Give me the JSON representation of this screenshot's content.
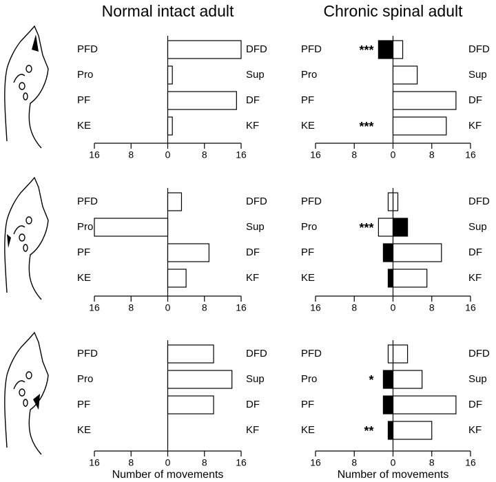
{
  "chart_data": [
    {
      "type": "bar",
      "title": "Normal intact adult",
      "categories": [
        "PFD",
        "Pro",
        "PF",
        "KE"
      ],
      "right_categories": [
        "DFD",
        "Sup",
        "DF",
        "KF"
      ],
      "series": [
        {
          "color": "#ffffff",
          "values": [
            16,
            1,
            15,
            1
          ]
        }
      ],
      "xlim": [
        -16,
        16
      ],
      "xticks": [
        {
          "value": -16,
          "label": "16"
        },
        {
          "value": -8,
          "label": "8"
        },
        0,
        8,
        16
      ]
    },
    {
      "type": "bar",
      "title": "Chronic spinal adult",
      "categories": [
        "PFD",
        "Pro",
        "PF",
        "KE"
      ],
      "right_categories": [
        "DFD",
        "Sup",
        "DF",
        "KF"
      ],
      "annotations": [
        "***",
        null,
        null,
        "***"
      ],
      "series": [
        {
          "color": "#ffffff",
          "values": [
            2,
            5,
            13,
            11
          ]
        },
        {
          "color": "#000000",
          "values": [
            -3,
            null,
            null,
            null
          ]
        }
      ],
      "xlim": [
        -16,
        16
      ],
      "xticks": [
        {
          "value": -16,
          "label": "16"
        },
        {
          "value": -8,
          "label": "8"
        },
        0,
        8,
        16
      ]
    },
    {
      "type": "bar",
      "categories": [
        "PFD",
        "Pro",
        "PF",
        "KE"
      ],
      "right_categories": [
        "DFD",
        "Sup",
        "DF",
        "KF"
      ],
      "series": [
        {
          "color": "#ffffff",
          "values": [
            3,
            null,
            9,
            4
          ]
        },
        {
          "color": "#ffffff",
          "values": [
            null,
            -16,
            null,
            null
          ]
        }
      ],
      "xlim": [
        -16,
        16
      ],
      "xticks": [
        {
          "value": -16,
          "label": "16"
        },
        {
          "value": -8,
          "label": "8"
        },
        0,
        8,
        16
      ]
    },
    {
      "type": "bar",
      "categories": [
        "PFD",
        "Pro",
        "PF",
        "KE"
      ],
      "right_categories": [
        "DFD",
        "Sup",
        "DF",
        "KF"
      ],
      "annotations": [
        null,
        "***",
        null,
        null
      ],
      "series": [
        {
          "color": "#ffffff",
          "values": [
            1,
            null,
            10,
            7
          ]
        },
        {
          "color": "#ffffff",
          "values": [
            -1,
            -3,
            null,
            null
          ]
        },
        {
          "color": "#000000",
          "values": [
            null,
            null,
            -2,
            -1
          ]
        },
        {
          "color": "#000000",
          "values": [
            null,
            3,
            null,
            null
          ]
        }
      ],
      "xlim": [
        -16,
        16
      ],
      "xticks": [
        {
          "value": -16,
          "label": "16"
        },
        {
          "value": -8,
          "label": "8"
        },
        0,
        8,
        16
      ]
    },
    {
      "type": "bar",
      "xlabel": "Number of movements",
      "categories": [
        "PFD",
        "Pro",
        "PF",
        "KE"
      ],
      "right_categories": [
        "DFD",
        "Sup",
        "DF",
        "KF"
      ],
      "series": [
        {
          "color": "#ffffff",
          "values": [
            10,
            14,
            10,
            null
          ]
        }
      ],
      "xlim": [
        -16,
        16
      ],
      "xticks": [
        {
          "value": -16,
          "label": "16"
        },
        {
          "value": -8,
          "label": "8"
        },
        0,
        8,
        16
      ]
    },
    {
      "type": "bar",
      "xlabel": "Number of movements",
      "categories": [
        "PFD",
        "Pro",
        "PF",
        "KE"
      ],
      "right_categories": [
        "DFD",
        "Sup",
        "DF",
        "KF"
      ],
      "annotations": [
        null,
        "*",
        null,
        "**"
      ],
      "series": [
        {
          "color": "#ffffff",
          "values": [
            3,
            6,
            13,
            8
          ]
        },
        {
          "color": "#ffffff",
          "values": [
            -1,
            null,
            null,
            null
          ]
        },
        {
          "color": "#000000",
          "values": [
            null,
            -2,
            -2,
            -1
          ]
        }
      ],
      "xlim": [
        -16,
        16
      ],
      "xticks": [
        {
          "value": -16,
          "label": "16"
        },
        {
          "value": -8,
          "label": "8"
        },
        0,
        8,
        16
      ]
    }
  ]
}
